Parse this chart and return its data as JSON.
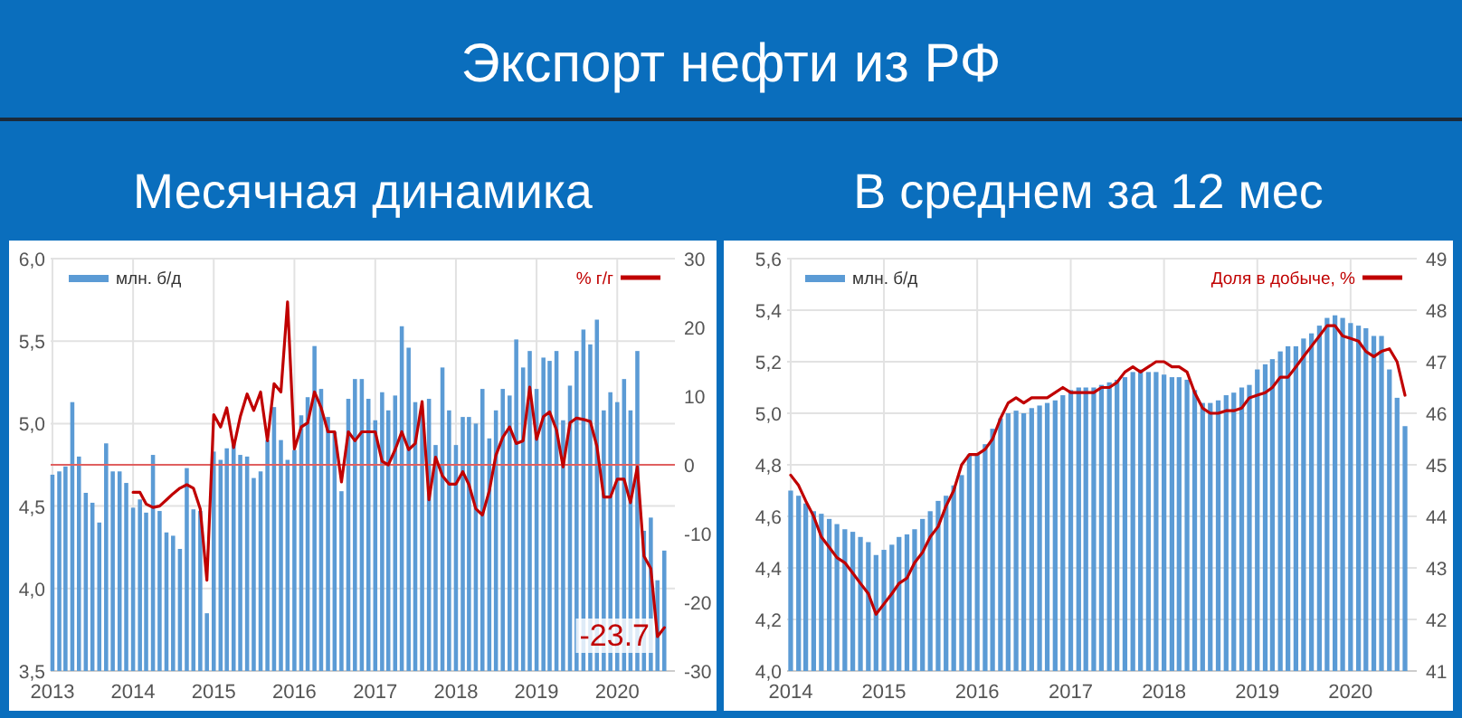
{
  "chart_data": [
    {
      "type": "bar",
      "title": "Экспорт нефти из РФ",
      "subtitle": "Месячная динамика",
      "x": [
        "2013-01",
        "2013-02",
        "2013-03",
        "2013-04",
        "2013-05",
        "2013-06",
        "2013-07",
        "2013-08",
        "2013-09",
        "2013-10",
        "2013-11",
        "2013-12",
        "2014-01",
        "2014-02",
        "2014-03",
        "2014-04",
        "2014-05",
        "2014-06",
        "2014-07",
        "2014-08",
        "2014-09",
        "2014-10",
        "2014-11",
        "2014-12",
        "2015-01",
        "2015-02",
        "2015-03",
        "2015-04",
        "2015-05",
        "2015-06",
        "2015-07",
        "2015-08",
        "2015-09",
        "2015-10",
        "2015-11",
        "2015-12",
        "2016-01",
        "2016-02",
        "2016-03",
        "2016-04",
        "2016-05",
        "2016-06",
        "2016-07",
        "2016-08",
        "2016-09",
        "2016-10",
        "2016-11",
        "2016-12",
        "2017-01",
        "2017-02",
        "2017-03",
        "2017-04",
        "2017-05",
        "2017-06",
        "2017-07",
        "2017-08",
        "2017-09",
        "2017-10",
        "2017-11",
        "2017-12",
        "2018-01",
        "2018-02",
        "2018-03",
        "2018-04",
        "2018-05",
        "2018-06",
        "2018-07",
        "2018-08",
        "2018-09",
        "2018-10",
        "2018-11",
        "2018-12",
        "2019-01",
        "2019-02",
        "2019-03",
        "2019-04",
        "2019-05",
        "2019-06",
        "2019-07",
        "2019-08",
        "2019-09",
        "2019-10",
        "2019-11",
        "2019-12",
        "2020-01",
        "2020-02",
        "2020-03",
        "2020-04",
        "2020-05",
        "2020-06",
        "2020-07",
        "2020-08"
      ],
      "xlim": [
        "2012-12-24",
        "2020-09-18"
      ],
      "xticks": [
        "2013",
        "2014",
        "2015",
        "2016",
        "2017",
        "2018",
        "2019",
        "2020"
      ],
      "ylim": [
        3.5,
        6.0
      ],
      "yticks": [
        {
          "value": 3.5,
          "label": "3,5"
        },
        {
          "value": 4.0,
          "label": "4,0"
        },
        {
          "value": 4.5,
          "label": "4,5"
        },
        {
          "value": 5.0,
          "label": "5,0"
        },
        {
          "value": 5.5,
          "label": "5,5"
        },
        {
          "value": 6.0,
          "label": "6,0"
        }
      ],
      "y2lim": [
        -30,
        30
      ],
      "y2ticks": [
        -30,
        -20,
        -10,
        0,
        10,
        20,
        30
      ],
      "series": [
        {
          "name": "млн. б/д",
          "color": "#5b9bd5",
          "values": [
            4.69,
            4.71,
            4.74,
            5.13,
            4.8,
            4.58,
            4.52,
            4.4,
            4.88,
            4.71,
            4.71,
            4.64,
            4.49,
            4.54,
            4.46,
            4.81,
            4.47,
            4.34,
            4.32,
            4.24,
            4.73,
            4.48,
            4.47,
            3.85,
            4.83,
            4.78,
            4.85,
            4.88,
            4.81,
            4.8,
            4.67,
            4.71,
            4.9,
            5.1,
            4.9,
            4.78,
            4.84,
            5.05,
            5.16,
            5.47,
            5.21,
            5.04,
            4.95,
            4.59,
            5.15,
            5.27,
            5.27,
            5.15,
            5.02,
            5.19,
            5.08,
            5.17,
            5.59,
            5.46,
            5.13,
            5.06,
            5.15,
            4.87,
            5.34,
            5.08,
            4.87,
            5.04,
            5.04,
            5.0,
            5.21,
            4.91,
            5.08,
            5.21,
            5.17,
            5.51,
            5.34,
            5.44,
            5.21,
            5.4,
            5.38,
            5.44,
            5.02,
            5.23,
            5.44,
            5.57,
            5.48,
            5.63,
            5.08,
            5.19,
            5.13,
            5.27,
            5.08,
            5.44,
            4.35,
            4.43,
            4.05,
            4.23
          ]
        },
        {
          "name": "% г/г",
          "type": "line",
          "axis": "y2",
          "color": "#c00000",
          "values": [
            null,
            null,
            null,
            null,
            null,
            null,
            null,
            null,
            null,
            null,
            null,
            null,
            -4,
            -4,
            -5.7,
            -6.2,
            -6,
            -5.1,
            -4.2,
            -3.4,
            -2.9,
            -3.4,
            -6.4,
            -16.8,
            7.3,
            5.5,
            8.3,
            2.5,
            7,
            10.3,
            7.9,
            10.6,
            3.5,
            11.8,
            10.6,
            23.7,
            2.3,
            5.5,
            6.1,
            10.6,
            8.3,
            4.8,
            4.8,
            -2.5,
            4.8,
            3.5,
            4.8,
            4.8,
            4.8,
            0.5,
            0,
            2.2,
            4.8,
            2.2,
            3.1,
            9.2,
            -5.1,
            1.1,
            -1.6,
            -2.8,
            -2.8,
            -1,
            -2.9,
            -6.4,
            -7.3,
            -3.8,
            1.4,
            4,
            5.5,
            3.1,
            3.5,
            11.3,
            3.7,
            7,
            7.7,
            5.1,
            -0.3,
            6.1,
            6.8,
            6.6,
            6.3,
            2.7,
            -4.7,
            -4.7,
            -2.1,
            -2.1,
            -5.5,
            -0.3,
            -13.3,
            -15.1,
            -25,
            -23.7
          ]
        }
      ],
      "ref_lines": [
        {
          "axis": "y2",
          "value": 0,
          "color": "#e06060"
        }
      ],
      "annotations": [
        "-23.7"
      ],
      "grid": true,
      "legend": "top"
    },
    {
      "type": "bar",
      "subtitle": "В среднем за 12 мес",
      "x": [
        "2014-01",
        "2014-02",
        "2014-03",
        "2014-04",
        "2014-05",
        "2014-06",
        "2014-07",
        "2014-08",
        "2014-09",
        "2014-10",
        "2014-11",
        "2014-12",
        "2015-01",
        "2015-02",
        "2015-03",
        "2015-04",
        "2015-05",
        "2015-06",
        "2015-07",
        "2015-08",
        "2015-09",
        "2015-10",
        "2015-11",
        "2015-12",
        "2016-01",
        "2016-02",
        "2016-03",
        "2016-04",
        "2016-05",
        "2016-06",
        "2016-07",
        "2016-08",
        "2016-09",
        "2016-10",
        "2016-11",
        "2016-12",
        "2017-01",
        "2017-02",
        "2017-03",
        "2017-04",
        "2017-05",
        "2017-06",
        "2017-07",
        "2017-08",
        "2017-09",
        "2017-10",
        "2017-11",
        "2017-12",
        "2018-01",
        "2018-02",
        "2018-03",
        "2018-04",
        "2018-05",
        "2018-06",
        "2018-07",
        "2018-08",
        "2018-09",
        "2018-10",
        "2018-11",
        "2018-12",
        "2019-01",
        "2019-02",
        "2019-03",
        "2019-04",
        "2019-05",
        "2019-06",
        "2019-07",
        "2019-08",
        "2019-09",
        "2019-10",
        "2019-11",
        "2019-12",
        "2020-01",
        "2020-02",
        "2020-03",
        "2020-04",
        "2020-05",
        "2020-06",
        "2020-07",
        "2020-08"
      ],
      "xlim": [
        "2013-12-18",
        "2020-09-16"
      ],
      "xticks": [
        "2014",
        "2015",
        "2016",
        "2017",
        "2018",
        "2019",
        "2020"
      ],
      "ylim": [
        4.0,
        5.6
      ],
      "yticks": [
        {
          "value": 4.0,
          "label": "4,0"
        },
        {
          "value": 4.2,
          "label": "4,2"
        },
        {
          "value": 4.4,
          "label": "4,4"
        },
        {
          "value": 4.6,
          "label": "4,6"
        },
        {
          "value": 4.8,
          "label": "4,8"
        },
        {
          "value": 5.0,
          "label": "5,0"
        },
        {
          "value": 5.2,
          "label": "5,2"
        },
        {
          "value": 5.4,
          "label": "5,4"
        },
        {
          "value": 5.6,
          "label": "5,6"
        }
      ],
      "y2lim": [
        41,
        49
      ],
      "y2ticks": [
        41,
        42,
        43,
        44,
        45,
        46,
        47,
        48,
        49
      ],
      "series": [
        {
          "name": "млн. б/д",
          "color": "#5b9bd5",
          "values": [
            4.7,
            4.68,
            4.65,
            4.62,
            4.61,
            4.59,
            4.57,
            4.55,
            4.54,
            4.52,
            4.5,
            4.45,
            4.47,
            4.49,
            4.52,
            4.53,
            4.55,
            4.59,
            4.62,
            4.66,
            4.68,
            4.72,
            4.76,
            4.84,
            4.84,
            4.88,
            4.94,
            4.98,
            5.0,
            5.01,
            5.0,
            5.02,
            5.03,
            5.04,
            5.05,
            5.07,
            5.09,
            5.1,
            5.1,
            5.1,
            5.11,
            5.12,
            5.13,
            5.14,
            5.16,
            5.17,
            5.16,
            5.16,
            5.15,
            5.14,
            5.14,
            5.13,
            5.09,
            5.04,
            5.04,
            5.05,
            5.07,
            5.08,
            5.1,
            5.11,
            5.17,
            5.19,
            5.21,
            5.24,
            5.26,
            5.26,
            5.29,
            5.31,
            5.34,
            5.37,
            5.38,
            5.37,
            5.35,
            5.34,
            5.33,
            5.3,
            5.3,
            5.17,
            5.06,
            4.95
          ]
        },
        {
          "name": "Доля в добыче, %",
          "type": "line",
          "axis": "y2",
          "color": "#c00000",
          "values": [
            44.8,
            44.6,
            44.3,
            44.0,
            43.6,
            43.4,
            43.2,
            43.1,
            42.9,
            42.7,
            42.5,
            42.1,
            42.3,
            42.5,
            42.7,
            42.8,
            43.1,
            43.3,
            43.6,
            43.8,
            44.2,
            44.5,
            45.0,
            45.2,
            45.2,
            45.3,
            45.5,
            45.9,
            46.2,
            46.3,
            46.2,
            46.3,
            46.3,
            46.3,
            46.4,
            46.5,
            46.4,
            46.4,
            46.4,
            46.4,
            46.5,
            46.5,
            46.6,
            46.8,
            46.9,
            46.8,
            46.9,
            47.0,
            47.0,
            46.9,
            46.9,
            46.8,
            46.4,
            46.1,
            46.0,
            46.0,
            46.05,
            46.05,
            46.1,
            46.3,
            46.35,
            46.4,
            46.5,
            46.7,
            46.7,
            46.9,
            47.1,
            47.3,
            47.5,
            47.7,
            47.7,
            47.5,
            47.45,
            47.4,
            47.2,
            47.1,
            47.2,
            47.25,
            47.0,
            46.35
          ]
        }
      ],
      "grid": true,
      "legend": "top"
    }
  ]
}
